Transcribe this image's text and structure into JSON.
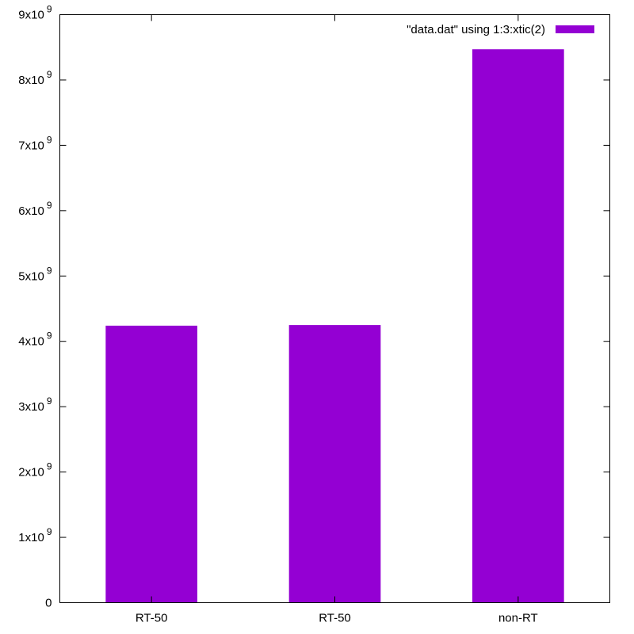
{
  "chart_data": {
    "type": "bar",
    "categories": [
      "RT-50",
      "RT-50",
      "non-RT"
    ],
    "series": [
      {
        "name": "\"data.dat\" using 1:3:xtic(2)",
        "values": [
          4240000000,
          4250000000,
          8470000000
        ],
        "color": "#9400d3"
      }
    ],
    "title": "",
    "xlabel": "",
    "ylabel": "",
    "ylim": [
      0,
      9000000000
    ],
    "yticks": [
      {
        "value": 0,
        "mantissa": "0",
        "exp": ""
      },
      {
        "value": 1000000000,
        "mantissa": "1x10",
        "exp": "9"
      },
      {
        "value": 2000000000,
        "mantissa": "2x10",
        "exp": "9"
      },
      {
        "value": 3000000000,
        "mantissa": "3x10",
        "exp": "9"
      },
      {
        "value": 4000000000,
        "mantissa": "4x10",
        "exp": "9"
      },
      {
        "value": 5000000000,
        "mantissa": "5x10",
        "exp": "9"
      },
      {
        "value": 6000000000,
        "mantissa": "6x10",
        "exp": "9"
      },
      {
        "value": 7000000000,
        "mantissa": "7x10",
        "exp": "9"
      },
      {
        "value": 8000000000,
        "mantissa": "8x10",
        "exp": "9"
      },
      {
        "value": 9000000000,
        "mantissa": "9x10",
        "exp": "9"
      }
    ],
    "grid": false,
    "legend_position": "top-right"
  }
}
